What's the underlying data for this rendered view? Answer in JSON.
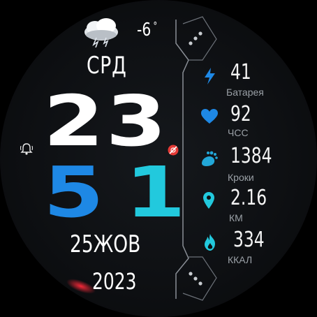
{
  "weather": {
    "icon": "storm-cloud-icon",
    "temperature": "-6",
    "degree_symbol": "°"
  },
  "date": {
    "weekday": "СРД",
    "day_month": "25ЖОВ",
    "year": "2023"
  },
  "time": {
    "hours": "23",
    "minutes_tens": "5",
    "minutes_ones": "1"
  },
  "colors": {
    "accent_blue": "#1e88e5",
    "accent_cyan": "#22c9dd",
    "text": "#ffffff",
    "label": "#9aa0a6",
    "alert_red": "#e53935"
  },
  "stats": [
    {
      "icon": "lightning-icon",
      "value": "41",
      "label": "Батарея",
      "color": "#1e88e5"
    },
    {
      "icon": "heart-icon",
      "value": "92",
      "label": "ЧСС",
      "color": "#1e88e5"
    },
    {
      "icon": "footprints-icon",
      "value": "1384",
      "label": "Кроки",
      "color": "#22a7d8"
    },
    {
      "icon": "location-pin-icon",
      "value": "2.16",
      "label": "КМ",
      "color": "#22c9dd"
    },
    {
      "icon": "flame-icon",
      "value": "334",
      "label": "ККАЛ",
      "color": "#22c9dd"
    }
  ],
  "indicators": {
    "alarm_icon": "bell-icon",
    "dnd_icon": "do-not-disturb-icon"
  }
}
